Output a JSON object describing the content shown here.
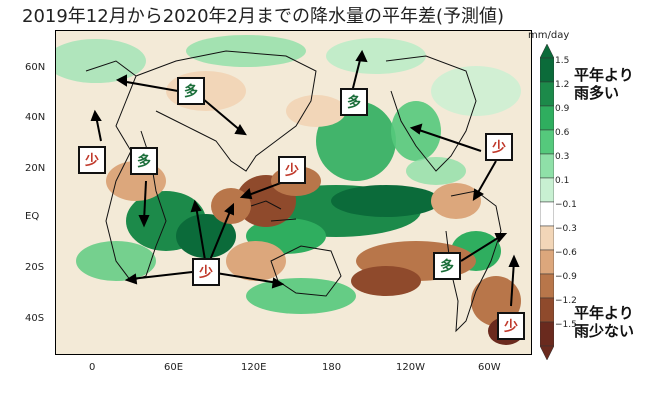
{
  "title": "2019年12月から2020年2月までの降水量の平年差(予測値)",
  "unit": "mm/day",
  "latitude_labels": [
    "60N",
    "40N",
    "20N",
    "EQ",
    "20S",
    "40S"
  ],
  "longitude_labels": [
    "0",
    "60E",
    "120E",
    "180",
    "120W",
    "60W"
  ],
  "colorbar": {
    "ticks": [
      "1.5",
      "1.2",
      "0.9",
      "0.6",
      "0.3",
      "0.1",
      "−0.1",
      "−0.3",
      "−0.6",
      "−0.9",
      "−1.2",
      "−1.5"
    ],
    "colors": [
      "#0b6b3a",
      "#1c8a4a",
      "#2fae5f",
      "#55c97c",
      "#8fe0a8",
      "#c8f0d2",
      "#ffffff",
      "#f2d6b8",
      "#dca77c",
      "#b8764a",
      "#8f4a2c",
      "#6a2a1e"
    ],
    "label_wet": [
      "平年より",
      "雨多い"
    ],
    "label_dry": [
      "平年より",
      "雨少ない"
    ]
  },
  "annotations": [
    {
      "label": "多",
      "kind": "wet"
    },
    {
      "label": "多",
      "kind": "wet"
    },
    {
      "label": "多",
      "kind": "wet"
    },
    {
      "label": "多",
      "kind": "wet"
    },
    {
      "label": "少",
      "kind": "dry"
    },
    {
      "label": "少",
      "kind": "dry"
    },
    {
      "label": "少",
      "kind": "dry"
    },
    {
      "label": "少",
      "kind": "dry"
    },
    {
      "label": "少",
      "kind": "dry"
    }
  ]
}
